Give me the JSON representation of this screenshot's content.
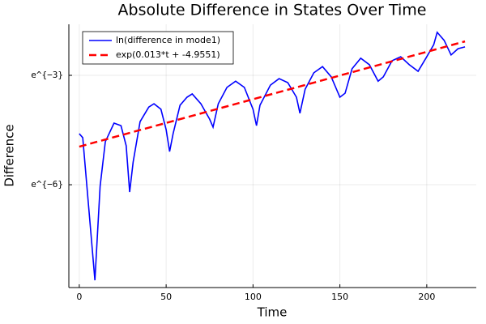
{
  "chart_data": {
    "type": "line",
    "title": "Absolute Difference in States Over Time",
    "x_label": "Time",
    "y_label": "Difference",
    "xlim": [
      -6,
      228.5
    ],
    "xticks": [
      0,
      50,
      100,
      150,
      200
    ],
    "ylim": [
      -8.82,
      -1.6
    ],
    "yticks": [
      {
        "value": -3,
        "label": "e^{−3}"
      },
      {
        "value": -6,
        "label": "e^{−6}"
      }
    ],
    "grid": true,
    "legend": "top-left",
    "series": [
      {
        "name": "ln(difference in mode1)",
        "color": "#0000ff",
        "dash": false,
        "x": [
          0,
          2,
          9,
          12,
          15,
          20,
          24,
          27,
          29,
          31,
          35,
          40,
          43,
          47,
          50,
          52,
          54,
          58,
          62,
          65,
          70,
          75,
          77,
          80,
          85,
          90,
          95,
          100,
          102,
          104,
          110,
          115,
          120,
          125,
          127,
          130,
          135,
          140,
          145,
          150,
          153,
          157,
          162,
          167,
          172,
          175,
          180,
          185,
          190,
          195,
          200,
          204,
          206,
          210,
          214,
          218,
          222
        ],
        "values": [
          -4.6,
          -4.71,
          -8.62,
          -6.04,
          -4.82,
          -4.31,
          -4.38,
          -4.93,
          -6.2,
          -5.38,
          -4.27,
          -3.87,
          -3.78,
          -3.93,
          -4.49,
          -5.09,
          -4.6,
          -3.82,
          -3.6,
          -3.51,
          -3.78,
          -4.2,
          -4.42,
          -3.78,
          -3.33,
          -3.16,
          -3.33,
          -3.93,
          -4.38,
          -3.82,
          -3.27,
          -3.09,
          -3.2,
          -3.6,
          -4.04,
          -3.38,
          -2.93,
          -2.76,
          -3.04,
          -3.6,
          -3.49,
          -2.82,
          -2.53,
          -2.71,
          -3.16,
          -3.04,
          -2.6,
          -2.49,
          -2.71,
          -2.89,
          -2.49,
          -2.16,
          -1.82,
          -2.04,
          -2.44,
          -2.27,
          -2.22
        ]
      },
      {
        "name": "exp(0.013*t + -4.9551)",
        "color": "#ff0000",
        "dash": true,
        "x": [
          0,
          222
        ],
        "values": [
          -4.955,
          -2.069
        ]
      }
    ]
  }
}
